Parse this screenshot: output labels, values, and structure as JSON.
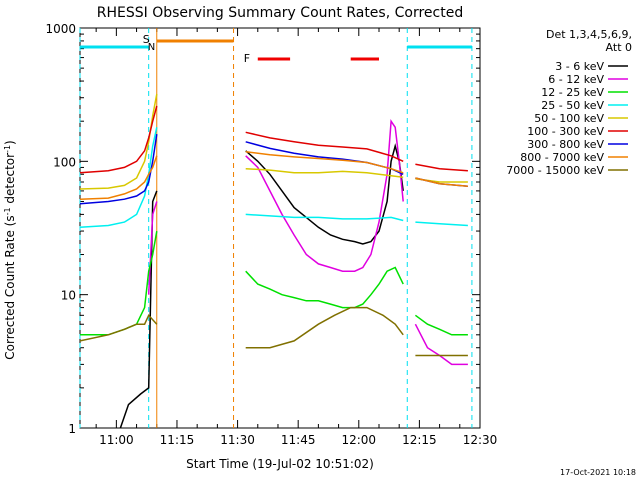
{
  "chart_data": {
    "type": "line",
    "title": "RHESSI Observing Summary Count Rates, Corrected",
    "xlabel": "Start Time (19-Jul-02 10:51:02)",
    "ylabel": "Corrected Count Rate (s⁻¹ detector⁻¹)",
    "ylabel_main": "Corrected Count Rate (s",
    "ylabel_sup1": "-1",
    "ylabel_mid": " detector",
    "ylabel_sup2": "-1",
    "ylabel_end": ")",
    "yscale": "log",
    "ylim": [
      1,
      1000
    ],
    "xlim": [
      "10:51",
      "12:30"
    ],
    "x_ticks": [
      "11:00",
      "11:15",
      "11:30",
      "11:45",
      "12:00",
      "12:15",
      "12:30"
    ],
    "y_ticks": [
      "1",
      "10",
      "100",
      "1000"
    ],
    "timestamp": "17-Oct-2021 10:18",
    "legend_header": [
      "Det 1,3,4,5,6,9,",
      "Att 0"
    ],
    "legend_position": "right",
    "flag_labels": {
      "saa": "S",
      "night": "N",
      "flare": "F"
    },
    "colors": {
      "3 - 6 keV": "#000000",
      "6 - 12 keV": "#e000e0",
      "12 - 25 keV": "#00e000",
      "25 - 50 keV": "#00f0f0",
      "50 - 100 keV": "#d8c800",
      "100 - 300 keV": "#e00000",
      "300 - 800 keV": "#0000e0",
      "800 - 7000 keV": "#f08000",
      "7000 - 15000 keV": "#807000",
      "saa_bar": "#f08000",
      "night_bar": "#00e0f0",
      "flare_bar": "#f00000"
    },
    "flags": {
      "night": [
        [
          "10:51",
          "11:08"
        ],
        [
          "12:12",
          "12:28"
        ]
      ],
      "saa": [
        [
          "11:10",
          "11:29"
        ]
      ],
      "flare": [
        [
          "11:35",
          "11:43"
        ],
        [
          "11:58",
          "12:05"
        ]
      ]
    },
    "gaps": [
      [
        "11:10",
        "11:31"
      ],
      [
        "12:12",
        "12:14"
      ]
    ],
    "series": [
      {
        "name": "3 - 6 keV",
        "segments": [
          [
            [
              "11:01",
              1.0
            ],
            [
              "11:03",
              1.5
            ],
            [
              "11:06",
              1.8
            ],
            [
              "11:08",
              2.0
            ],
            [
              "11:09",
              50
            ],
            [
              "11:10",
              60
            ]
          ],
          [
            [
              "11:32",
              120
            ],
            [
              "11:35",
              100
            ],
            [
              "11:38",
              80
            ],
            [
              "11:41",
              60
            ],
            [
              "11:44",
              45
            ],
            [
              "11:47",
              38
            ],
            [
              "11:50",
              32
            ],
            [
              "11:53",
              28
            ],
            [
              "11:56",
              26
            ],
            [
              "11:59",
              25
            ],
            [
              "12:01",
              24
            ],
            [
              "12:03",
              25
            ],
            [
              "12:05",
              30
            ],
            [
              "12:07",
              50
            ],
            [
              "12:08",
              100
            ],
            [
              "12:09",
              130
            ],
            [
              "12:10",
              100
            ],
            [
              "12:11",
              60
            ]
          ]
        ]
      },
      {
        "name": "6 - 12 keV",
        "segments": [
          [
            [
              "11:08",
              10
            ],
            [
              "11:09",
              40
            ],
            [
              "11:10",
              50
            ]
          ],
          [
            [
              "11:32",
              110
            ],
            [
              "11:35",
              90
            ],
            [
              "11:38",
              60
            ],
            [
              "11:41",
              40
            ],
            [
              "11:44",
              28
            ],
            [
              "11:47",
              20
            ],
            [
              "11:50",
              17
            ],
            [
              "11:53",
              16
            ],
            [
              "11:56",
              15
            ],
            [
              "11:59",
              15
            ],
            [
              "12:01",
              16
            ],
            [
              "12:03",
              20
            ],
            [
              "12:05",
              35
            ],
            [
              "12:07",
              80
            ],
            [
              "12:08",
              200
            ],
            [
              "12:09",
              180
            ],
            [
              "12:10",
              100
            ],
            [
              "12:11",
              50
            ]
          ],
          [
            [
              "12:14",
              6
            ],
            [
              "12:17",
              4
            ],
            [
              "12:20",
              3.5
            ],
            [
              "12:23",
              3
            ],
            [
              "12:27",
              3
            ]
          ]
        ]
      },
      {
        "name": "12 - 25 keV",
        "segments": [
          [
            [
              "10:51",
              5
            ],
            [
              "10:58",
              5
            ],
            [
              "11:02",
              5.5
            ],
            [
              "11:05",
              6
            ],
            [
              "11:07",
              8
            ],
            [
              "11:08",
              15
            ],
            [
              "11:09",
              20
            ],
            [
              "11:10",
              30
            ]
          ],
          [
            [
              "11:32",
              15
            ],
            [
              "11:35",
              12
            ],
            [
              "11:38",
              11
            ],
            [
              "11:41",
              10
            ],
            [
              "11:44",
              9.5
            ],
            [
              "11:47",
              9
            ],
            [
              "11:50",
              9
            ],
            [
              "11:53",
              8.5
            ],
            [
              "11:56",
              8
            ],
            [
              "11:59",
              8
            ],
            [
              "12:01",
              8.5
            ],
            [
              "12:03",
              10
            ],
            [
              "12:05",
              12
            ],
            [
              "12:07",
              15
            ],
            [
              "12:09",
              16
            ],
            [
              "12:11",
              12
            ]
          ],
          [
            [
              "12:14",
              7
            ],
            [
              "12:17",
              6
            ],
            [
              "12:20",
              5.5
            ],
            [
              "12:23",
              5
            ],
            [
              "12:27",
              5
            ]
          ]
        ]
      },
      {
        "name": "25 - 50 keV",
        "segments": [
          [
            [
              "10:51",
              32
            ],
            [
              "10:58",
              33
            ],
            [
              "11:02",
              35
            ],
            [
              "11:05",
              40
            ],
            [
              "11:07",
              55
            ],
            [
              "11:08",
              80
            ],
            [
              "11:09",
              130
            ],
            [
              "11:10",
              180
            ]
          ],
          [
            [
              "11:32",
              40
            ],
            [
              "11:38",
              39
            ],
            [
              "11:44",
              38
            ],
            [
              "11:50",
              38
            ],
            [
              "11:56",
              37
            ],
            [
              "12:02",
              37
            ],
            [
              "12:08",
              38
            ],
            [
              "12:11",
              36
            ]
          ],
          [
            [
              "12:14",
              35
            ],
            [
              "12:20",
              34
            ],
            [
              "12:27",
              33
            ]
          ]
        ]
      },
      {
        "name": "50 - 100 keV",
        "segments": [
          [
            [
              "10:51",
              62
            ],
            [
              "10:58",
              63
            ],
            [
              "11:02",
              66
            ],
            [
              "11:05",
              75
            ],
            [
              "11:07",
              100
            ],
            [
              "11:08",
              140
            ],
            [
              "11:09",
              220
            ],
            [
              "11:10",
              320
            ]
          ],
          [
            [
              "11:32",
              88
            ],
            [
              "11:38",
              86
            ],
            [
              "11:44",
              82
            ],
            [
              "11:50",
              82
            ],
            [
              "11:56",
              84
            ],
            [
              "12:02",
              82
            ],
            [
              "12:08",
              78
            ],
            [
              "12:11",
              76
            ]
          ],
          [
            [
              "12:14",
              74
            ],
            [
              "12:20",
              70
            ],
            [
              "12:27",
              70
            ]
          ]
        ]
      },
      {
        "name": "100 - 300 keV",
        "segments": [
          [
            [
              "10:51",
              82
            ],
            [
              "10:58",
              85
            ],
            [
              "11:02",
              90
            ],
            [
              "11:05",
              100
            ],
            [
              "11:07",
              120
            ],
            [
              "11:08",
              150
            ],
            [
              "11:09",
              200
            ],
            [
              "11:10",
              260
            ]
          ],
          [
            [
              "11:32",
              165
            ],
            [
              "11:38",
              150
            ],
            [
              "11:44",
              140
            ],
            [
              "11:50",
              132
            ],
            [
              "11:56",
              128
            ],
            [
              "12:02",
              124
            ],
            [
              "12:08",
              110
            ],
            [
              "12:11",
              100
            ]
          ],
          [
            [
              "12:14",
              95
            ],
            [
              "12:20",
              88
            ],
            [
              "12:27",
              85
            ]
          ]
        ]
      },
      {
        "name": "300 - 800 keV",
        "segments": [
          [
            [
              "10:51",
              48
            ],
            [
              "10:58",
              50
            ],
            [
              "11:02",
              52
            ],
            [
              "11:05",
              55
            ],
            [
              "11:07",
              60
            ],
            [
              "11:08",
              70
            ],
            [
              "11:09",
              100
            ],
            [
              "11:10",
              160
            ]
          ],
          [
            [
              "11:32",
              140
            ],
            [
              "11:38",
              125
            ],
            [
              "11:44",
              115
            ],
            [
              "11:50",
              108
            ],
            [
              "11:56",
              104
            ],
            [
              "12:02",
              98
            ],
            [
              "12:08",
              88
            ],
            [
              "12:11",
              80
            ]
          ],
          [
            [
              "12:14",
              75
            ],
            [
              "12:20",
              68
            ],
            [
              "12:27",
              65
            ]
          ]
        ]
      },
      {
        "name": "800 - 7000 keV",
        "segments": [
          [
            [
              "10:51",
              52
            ],
            [
              "10:58",
              53
            ],
            [
              "11:02",
              57
            ],
            [
              "11:05",
              62
            ],
            [
              "11:07",
              70
            ],
            [
              "11:08",
              80
            ],
            [
              "11:09",
              90
            ],
            [
              "11:10",
              110
            ]
          ],
          [
            [
              "11:32",
              118
            ],
            [
              "11:38",
              112
            ],
            [
              "11:44",
              108
            ],
            [
              "11:50",
              105
            ],
            [
              "11:56",
              102
            ],
            [
              "12:02",
              98
            ],
            [
              "12:08",
              88
            ],
            [
              "12:11",
              82
            ]
          ],
          [
            [
              "12:14",
              75
            ],
            [
              "12:20",
              68
            ],
            [
              "12:27",
              65
            ]
          ]
        ]
      },
      {
        "name": "7000 - 15000 keV",
        "segments": [
          [
            [
              "10:51",
              4.5
            ],
            [
              "10:58",
              5
            ],
            [
              "11:02",
              5.5
            ],
            [
              "11:05",
              6
            ],
            [
              "11:07",
              6
            ],
            [
              "11:08",
              7
            ],
            [
              "11:10",
              6
            ]
          ],
          [
            [
              "11:32",
              4
            ],
            [
              "11:38",
              4
            ],
            [
              "11:44",
              4.5
            ],
            [
              "11:50",
              6
            ],
            [
              "11:54",
              7
            ],
            [
              "11:58",
              8
            ],
            [
              "12:02",
              8
            ],
            [
              "12:06",
              7
            ],
            [
              "12:09",
              6
            ],
            [
              "12:11",
              5
            ]
          ],
          [
            [
              "12:14",
              3.5
            ],
            [
              "12:20",
              3.5
            ],
            [
              "12:27",
              3.5
            ]
          ]
        ]
      }
    ]
  }
}
